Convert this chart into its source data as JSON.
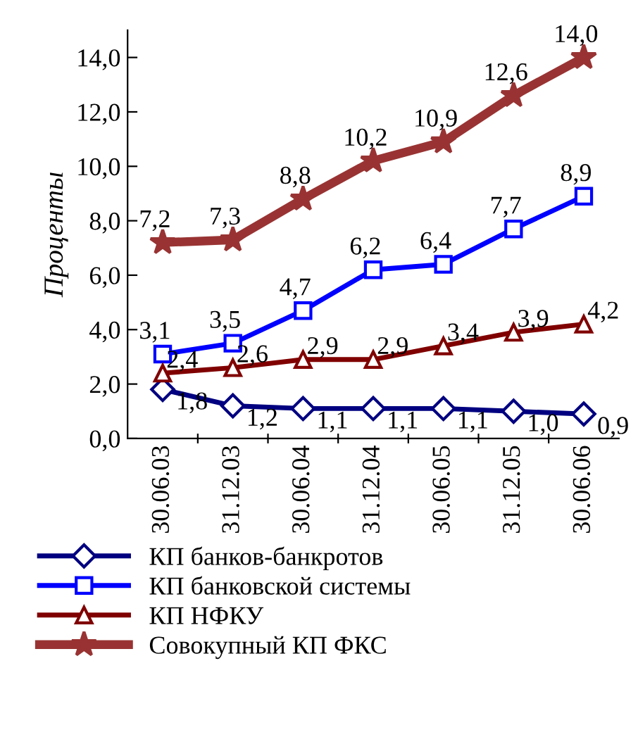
{
  "chart_data": {
    "type": "line",
    "ylabel": "Проценты",
    "categories": [
      "30.06.03",
      "31.12.03",
      "30.06.04",
      "31.12.04",
      "30.06.05",
      "31.12.05",
      "30.06.06"
    ],
    "series": [
      {
        "name": "КП банков-банкротов",
        "color": "#000080",
        "marker": "diamond",
        "values": [
          1.8,
          1.2,
          1.1,
          1.1,
          1.1,
          1.0,
          0.9
        ],
        "value_labels": [
          "1,8",
          "1,2",
          "1,1",
          "1,1",
          "1,1",
          "1,0",
          "0,9"
        ]
      },
      {
        "name": "КП банковской системы",
        "color": "#0000ff",
        "marker": "square",
        "values": [
          3.1,
          3.5,
          4.7,
          6.2,
          6.4,
          7.7,
          8.9
        ],
        "value_labels": [
          "3,1",
          "3,5",
          "4,7",
          "6,2",
          "6,4",
          "7,7",
          "8,9"
        ]
      },
      {
        "name": "КП НФКУ",
        "color": "#800000",
        "marker": "triangle",
        "values": [
          2.4,
          2.6,
          2.9,
          2.9,
          3.4,
          3.9,
          4.2
        ],
        "value_labels": [
          "2,4",
          "2,6",
          "2,9",
          "2,9",
          "3,4",
          "3,9",
          "4,2"
        ]
      },
      {
        "name": "Совокупный КП ФКС",
        "color": "#993333",
        "marker": "star",
        "values": [
          7.2,
          7.3,
          8.8,
          10.2,
          10.9,
          12.6,
          14.0
        ],
        "value_labels": [
          "7,2",
          "7,3",
          "8,8",
          "10,2",
          "10,9",
          "12,6",
          "14,0"
        ]
      }
    ],
    "ylim": [
      0,
      15
    ],
    "yticks": [
      {
        "value": 0,
        "label": "0,0"
      },
      {
        "value": 2,
        "label": "2,0"
      },
      {
        "value": 4,
        "label": "4,0"
      },
      {
        "value": 6,
        "label": "6,0"
      },
      {
        "value": 8,
        "label": "8,0"
      },
      {
        "value": 10,
        "label": "10,0"
      },
      {
        "value": 12,
        "label": "12,0"
      },
      {
        "value": 14,
        "label": "14,0"
      }
    ],
    "grid": false,
    "legend": "bottom",
    "line_style": "solid"
  }
}
